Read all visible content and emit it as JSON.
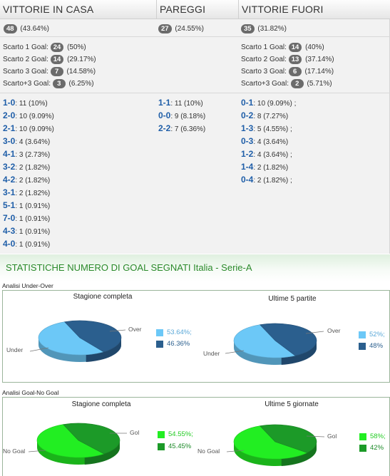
{
  "results": {
    "headers": {
      "home": "VITTORIE IN CASA",
      "draw": "PAREGGI",
      "away": "VITTORIE FUORI"
    },
    "home_total": {
      "count": "48",
      "pct": "(43.64%)"
    },
    "draw_total": {
      "count": "27",
      "pct": "(24.55%)"
    },
    "away_total": {
      "count": "35",
      "pct": "(31.82%)"
    },
    "home_margins": [
      {
        "label": "Scarto 1 Goal:",
        "count": "24",
        "pct": "(50%)"
      },
      {
        "label": "Scarto 2 Goal:",
        "count": "14",
        "pct": "(29.17%)"
      },
      {
        "label": "Scarto 3 Goal:",
        "count": "7",
        "pct": "(14.58%)"
      },
      {
        "label": "Scarto+3 Goal:",
        "count": "3",
        "pct": "(6.25%)"
      }
    ],
    "away_margins": [
      {
        "label": "Scarto 1 Goal:",
        "count": "14",
        "pct": "(40%)"
      },
      {
        "label": "Scarto 2 Goal:",
        "count": "13",
        "pct": "(37.14%)"
      },
      {
        "label": "Scarto 3 Goal:",
        "count": "6",
        "pct": "(17.14%)"
      },
      {
        "label": "Scarto+3 Goal:",
        "count": "2",
        "pct": "(5.71%)"
      }
    ],
    "home_scores": [
      {
        "score": "1-0",
        "detail": ": 11 (10%)"
      },
      {
        "score": "2-0",
        "detail": ": 10 (9.09%)"
      },
      {
        "score": "2-1",
        "detail": ": 10 (9.09%)"
      },
      {
        "score": "3-0",
        "detail": ": 4 (3.64%)"
      },
      {
        "score": "4-1",
        "detail": ": 3 (2.73%)"
      },
      {
        "score": "3-2",
        "detail": ": 2 (1.82%)"
      },
      {
        "score": "4-2",
        "detail": ": 2 (1.82%)"
      },
      {
        "score": "3-1",
        "detail": ": 2 (1.82%)"
      },
      {
        "score": "5-1",
        "detail": ": 1 (0.91%)"
      },
      {
        "score": "7-0",
        "detail": ": 1 (0.91%)"
      },
      {
        "score": "4-3",
        "detail": ": 1 (0.91%)"
      },
      {
        "score": "4-0",
        "detail": ": 1 (0.91%)"
      }
    ],
    "draw_scores": [
      {
        "score": "1-1",
        "detail": ": 11 (10%)"
      },
      {
        "score": "0-0",
        "detail": ": 9 (8.18%)"
      },
      {
        "score": "2-2",
        "detail": ": 7 (6.36%)"
      }
    ],
    "away_scores": [
      {
        "score": "0-1",
        "detail": ": 10 (9.09%) ;"
      },
      {
        "score": "0-2",
        "detail": ": 8 (7.27%)"
      },
      {
        "score": "1-3",
        "detail": ": 5 (4.55%) ;"
      },
      {
        "score": "0-3",
        "detail": ": 4 (3.64%)"
      },
      {
        "score": "1-2",
        "detail": ": 4 (3.64%) ;"
      },
      {
        "score": "1-4",
        "detail": ": 2 (1.82%)"
      },
      {
        "score": "0-4",
        "detail": ": 2 (1.82%) ;"
      }
    ]
  },
  "stats": {
    "section_title": "STATISTICHE NUMERO DI GOAL SEGNATI Italia - Serie-A",
    "under_over": {
      "panel_label": "Analisi Under-Over",
      "season_title": "Stagione completa",
      "recent_title": "Ultime 5 partite",
      "season_legend": [
        "53.64%;",
        "46.36%"
      ],
      "recent_legend": [
        "52%;",
        "48%"
      ],
      "tag_a": "Over",
      "tag_b": "Under",
      "colors": {
        "a": "#6cc8f7",
        "b": "#2b5f8e"
      }
    },
    "goal_nogoal": {
      "panel_label": "Analisi Goal-No Goal",
      "season_title": "Stagione completa",
      "recent_title": "Ultime 5 giornate",
      "season_legend": [
        "54.55%;",
        "45.45%"
      ],
      "recent_legend": [
        "58%;",
        "42%"
      ],
      "tag_a": "Gol",
      "tag_b": "No Goal",
      "colors": {
        "a": "#22ee22",
        "b": "#1c9a28"
      }
    }
  },
  "chart_data": [
    {
      "type": "pie",
      "title": "Stagione completa",
      "labels": [
        "Under",
        "Over"
      ],
      "values": [
        53.64,
        46.36
      ]
    },
    {
      "type": "pie",
      "title": "Ultime 5 partite",
      "labels": [
        "Under",
        "Over"
      ],
      "values": [
        52,
        48
      ]
    },
    {
      "type": "pie",
      "title": "Stagione completa",
      "labels": [
        "No Goal",
        "Gol"
      ],
      "values": [
        54.55,
        45.45
      ]
    },
    {
      "type": "pie",
      "title": "Ultime 5 giornate",
      "labels": [
        "No Goal",
        "Gol"
      ],
      "values": [
        58,
        42
      ]
    }
  ]
}
